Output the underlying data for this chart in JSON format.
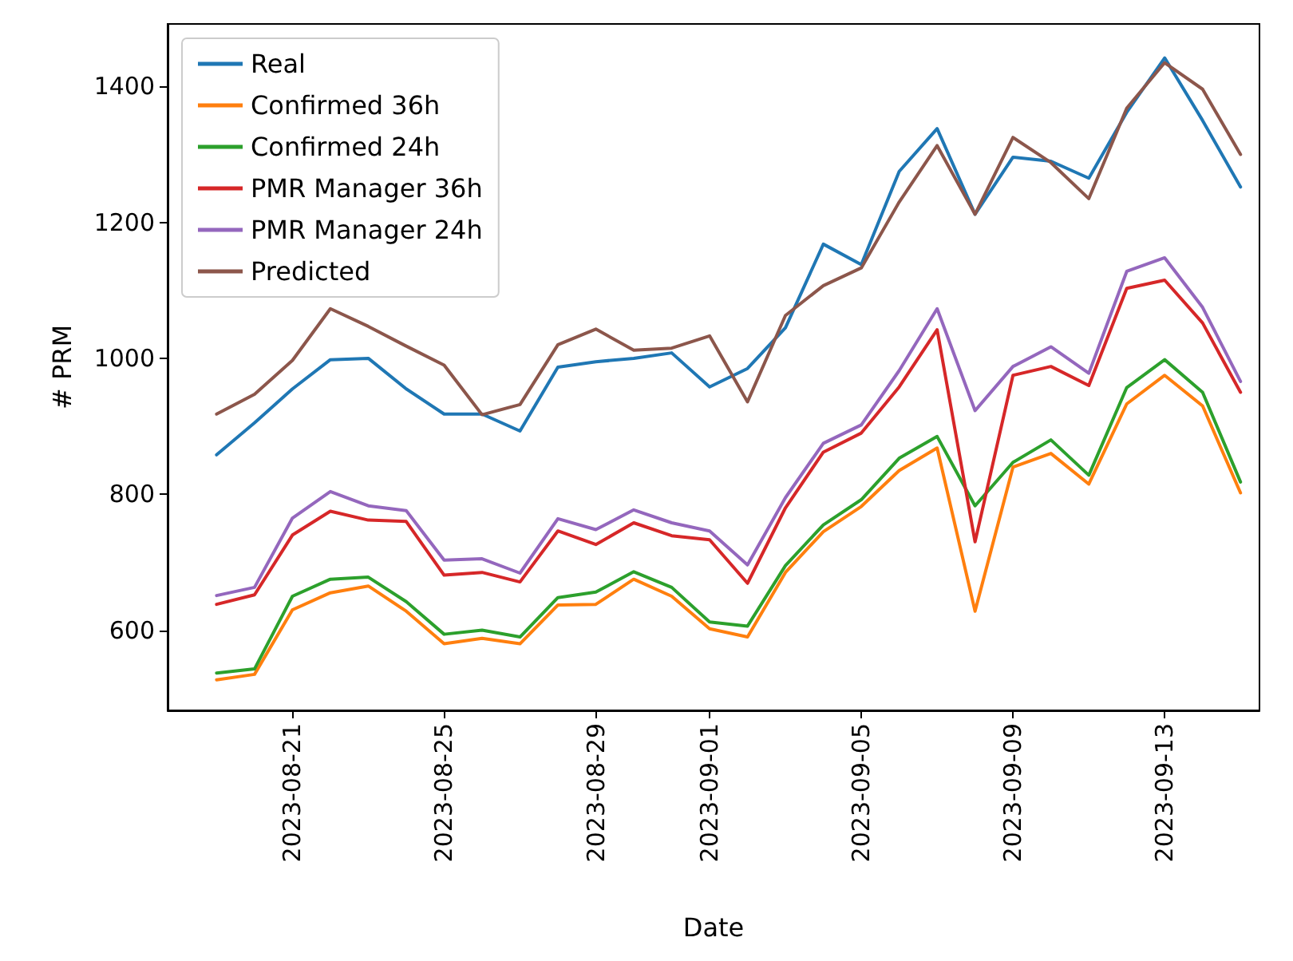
{
  "chart_data": {
    "type": "line",
    "xlabel": "Date",
    "ylabel": "# PRM",
    "x": [
      "2023-08-19",
      "2023-08-20",
      "2023-08-21",
      "2023-08-22",
      "2023-08-23",
      "2023-08-24",
      "2023-08-25",
      "2023-08-26",
      "2023-08-27",
      "2023-08-28",
      "2023-08-29",
      "2023-08-30",
      "2023-08-31",
      "2023-09-01",
      "2023-09-02",
      "2023-09-03",
      "2023-09-04",
      "2023-09-05",
      "2023-09-06",
      "2023-09-07",
      "2023-09-08",
      "2023-09-09",
      "2023-09-10",
      "2023-09-11",
      "2023-09-12",
      "2023-09-13",
      "2023-09-14",
      "2023-09-15"
    ],
    "series": [
      {
        "name": "Real",
        "color": "#1f77b4",
        "values": [
          858,
          905,
          955,
          998,
          1000,
          955,
          918,
          918,
          893,
          987,
          995,
          1000,
          1008,
          958,
          985,
          1045,
          1168,
          1138,
          1275,
          1338,
          1212,
          1296,
          1290,
          1265,
          1362,
          1442,
          1350,
          1252
        ]
      },
      {
        "name": "Confirmed 36h",
        "color": "#ff7f0e",
        "values": [
          527,
          535,
          630,
          655,
          665,
          628,
          580,
          588,
          580,
          637,
          638,
          675,
          650,
          602,
          590,
          685,
          745,
          782,
          835,
          868,
          628,
          840,
          860,
          815,
          933,
          975,
          930,
          802
        ]
      },
      {
        "name": "Confirmed 24h",
        "color": "#2ca02c",
        "values": [
          537,
          543,
          650,
          675,
          678,
          642,
          594,
          600,
          590,
          648,
          656,
          686,
          663,
          612,
          606,
          695,
          755,
          792,
          853,
          885,
          783,
          847,
          880,
          828,
          957,
          998,
          950,
          818
        ]
      },
      {
        "name": "PMR Manager 36h",
        "color": "#d62728",
        "values": [
          638,
          652,
          740,
          775,
          762,
          760,
          681,
          685,
          671,
          746,
          726,
          758,
          739,
          733,
          669,
          780,
          862,
          890,
          958,
          1042,
          730,
          975,
          988,
          960,
          1103,
          1115,
          1052,
          950
        ]
      },
      {
        "name": "PMR Manager 24h",
        "color": "#9467bd",
        "values": [
          651,
          663,
          765,
          804,
          783,
          776,
          703,
          705,
          684,
          764,
          748,
          777,
          758,
          746,
          696,
          795,
          875,
          902,
          982,
          1073,
          923,
          988,
          1017,
          978,
          1128,
          1148,
          1075,
          966
        ]
      },
      {
        "name": "Predicted",
        "color": "#8c564b",
        "values": [
          918,
          947,
          997,
          1073,
          1047,
          1018,
          990,
          917,
          932,
          1020,
          1043,
          1012,
          1015,
          1033,
          936,
          1063,
          1107,
          1133,
          1230,
          1313,
          1212,
          1325,
          1288,
          1235,
          1368,
          1435,
          1396,
          1300
        ]
      }
    ],
    "xlim": [
      "2023-08-17T17:00",
      "2023-09-15T12:00"
    ],
    "xticks": [
      "2023-08-21",
      "2023-08-25",
      "2023-08-29",
      "2023-09-01",
      "2023-09-05",
      "2023-09-09",
      "2023-09-13"
    ],
    "ylim": [
      482,
      1492
    ],
    "yticks": [
      600,
      800,
      1000,
      1200,
      1400
    ],
    "grid": false,
    "legend": "top left",
    "marker": "none",
    "line_style": "solid"
  }
}
